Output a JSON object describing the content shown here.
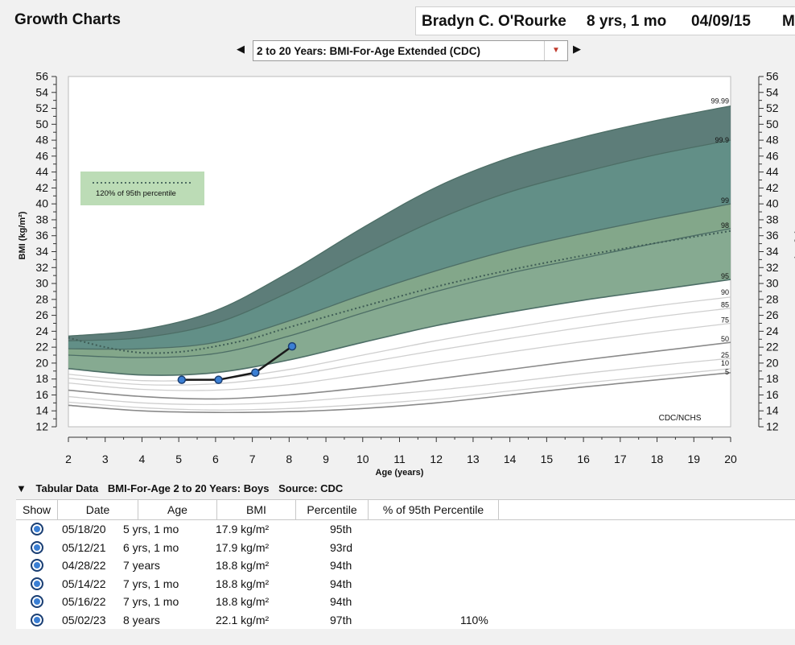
{
  "app": {
    "title": "Growth Charts"
  },
  "patient": {
    "name": "Bradyn C. O'Rourke",
    "age": "8 yrs, 1 mo",
    "date": "04/09/15",
    "extra": "M"
  },
  "selector": {
    "value": "2 to 20 Years: BMI-For-Age Extended (CDC)",
    "prev_icon": "triangle-left-icon",
    "next_icon": "triangle-right-icon"
  },
  "chart_data": {
    "type": "line",
    "xlabel": "Age (years)",
    "ylabel": "BMI (kg/m²)",
    "ylabel_right": "BMI (kg/m²)",
    "xlim": [
      2,
      20
    ],
    "ylim": [
      12,
      56
    ],
    "x_ticks": [
      "2",
      "3",
      "4",
      "5",
      "6",
      "7",
      "8",
      "9",
      "10",
      "11",
      "12",
      "13",
      "14",
      "15",
      "16",
      "17",
      "18",
      "19",
      "20"
    ],
    "y_ticks": [
      "12",
      "14",
      "16",
      "18",
      "20",
      "22",
      "24",
      "26",
      "28",
      "30",
      "32",
      "34",
      "36",
      "38",
      "40",
      "42",
      "44",
      "46",
      "48",
      "50",
      "52",
      "54",
      "56"
    ],
    "source_label": "CDC/NCHS",
    "legend": {
      "label": "120% of 95th percentile",
      "placement": "top-left"
    },
    "percentile_curves": [
      {
        "name": "5",
        "x": [
          2,
          4,
          6,
          8,
          10,
          12,
          14,
          16,
          18,
          20
        ],
        "y": [
          14.7,
          14.0,
          13.8,
          13.9,
          14.3,
          15.0,
          16.0,
          17.0,
          17.9,
          18.8
        ]
      },
      {
        "name": "10",
        "x": [
          2,
          4,
          6,
          8,
          10,
          12,
          14,
          16,
          18,
          20
        ],
        "y": [
          15.1,
          14.4,
          14.1,
          14.3,
          14.8,
          15.5,
          16.5,
          17.5,
          18.4,
          19.3
        ]
      },
      {
        "name": "25",
        "x": [
          2,
          4,
          6,
          8,
          10,
          12,
          14,
          16,
          18,
          20
        ],
        "y": [
          15.8,
          15.0,
          14.8,
          15.1,
          15.8,
          16.6,
          17.6,
          18.7,
          19.7,
          20.6
        ]
      },
      {
        "name": "50",
        "x": [
          2,
          4,
          6,
          8,
          10,
          12,
          14,
          16,
          18,
          20
        ],
        "y": [
          16.6,
          15.8,
          15.5,
          16.0,
          16.9,
          18.0,
          19.2,
          20.4,
          21.5,
          22.6
        ]
      },
      {
        "name": "75",
        "x": [
          2,
          4,
          6,
          8,
          10,
          12,
          14,
          16,
          18,
          20
        ],
        "y": [
          17.5,
          16.7,
          16.6,
          17.3,
          18.6,
          20.0,
          21.4,
          22.7,
          23.9,
          25.0
        ]
      },
      {
        "name": "85",
        "x": [
          2,
          4,
          6,
          8,
          10,
          12,
          14,
          16,
          18,
          20
        ],
        "y": [
          18.1,
          17.3,
          17.4,
          18.4,
          20.0,
          21.6,
          23.1,
          24.5,
          25.8,
          26.9
        ]
      },
      {
        "name": "90",
        "x": [
          2,
          4,
          6,
          8,
          10,
          12,
          14,
          16,
          18,
          20
        ],
        "y": [
          18.6,
          17.8,
          18.0,
          19.2,
          21.0,
          22.8,
          24.4,
          25.9,
          27.2,
          28.3
        ]
      },
      {
        "name": "95",
        "x": [
          2,
          4,
          6,
          8,
          10,
          12,
          14,
          16,
          18,
          20
        ],
        "y": [
          19.3,
          18.5,
          18.8,
          20.4,
          22.6,
          24.7,
          26.4,
          27.9,
          29.2,
          30.5
        ]
      },
      {
        "name": "98",
        "x": [
          2,
          4,
          6,
          8,
          10,
          12,
          14,
          16,
          18,
          20
        ],
        "y": [
          21.0,
          20.7,
          21.2,
          23.4,
          26.3,
          29.0,
          31.3,
          33.2,
          35.1,
          36.9
        ]
      },
      {
        "name": "99",
        "x": [
          2,
          4,
          6,
          8,
          10,
          12,
          14,
          16,
          18,
          20
        ],
        "y": [
          21.8,
          21.8,
          22.6,
          25.3,
          28.6,
          31.6,
          34.2,
          36.3,
          38.2,
          40.0
        ]
      },
      {
        "name": "99.9",
        "x": [
          2,
          4,
          6,
          8,
          10,
          12,
          14,
          16,
          18,
          20
        ],
        "y": [
          22.8,
          23.2,
          25.0,
          28.9,
          33.6,
          38.0,
          41.5,
          44.0,
          46.2,
          48.0
        ]
      },
      {
        "name": "99.99",
        "x": [
          2,
          4,
          6,
          8,
          10,
          12,
          14,
          16,
          18,
          20
        ],
        "y": [
          23.4,
          24.2,
          26.6,
          31.4,
          37.0,
          42.1,
          45.8,
          48.4,
          50.5,
          52.3
        ]
      }
    ],
    "pct120_of_95th": {
      "x": [
        2,
        3,
        4,
        5,
        6,
        7,
        8,
        10,
        12,
        14,
        16,
        18,
        20
      ],
      "y": [
        23.2,
        22.0,
        21.3,
        21.4,
        22.1,
        23.1,
        24.5,
        27.1,
        29.6,
        31.7,
        33.5,
        35.1,
        36.6
      ]
    },
    "patient_series": {
      "name": "Patient",
      "x": [
        5.08,
        6.08,
        7.08,
        8.08
      ],
      "y": [
        17.9,
        17.9,
        18.8,
        22.1
      ]
    }
  },
  "tabular": {
    "toggle_icon": "triangle-down-icon",
    "title": "Tabular Data",
    "subtitle": "BMI-For-Age 2 to 20 Years: Boys",
    "source": "Source: CDC",
    "columns": [
      "Show",
      "Date",
      "Age",
      "BMI",
      "Percentile",
      "% of 95th Percentile"
    ],
    "rows": [
      {
        "date": "05/18/20",
        "age": "5 yrs, 1 mo",
        "bmi": "17.9 kg/m²",
        "percentile": "95th",
        "pct95": ""
      },
      {
        "date": "05/12/21",
        "age": "6 yrs, 1 mo",
        "bmi": "17.9 kg/m²",
        "percentile": "93rd",
        "pct95": ""
      },
      {
        "date": "04/28/22",
        "age": "7 years",
        "bmi": "18.8 kg/m²",
        "percentile": "94th",
        "pct95": ""
      },
      {
        "date": "05/14/22",
        "age": "7 yrs, 1 mo",
        "bmi": "18.8 kg/m²",
        "percentile": "94th",
        "pct95": ""
      },
      {
        "date": "05/16/22",
        "age": "7 yrs, 1 mo",
        "bmi": "18.8 kg/m²",
        "percentile": "94th",
        "pct95": ""
      },
      {
        "date": "05/02/23",
        "age": "8 years",
        "bmi": "22.1 kg/m²",
        "percentile": "97th",
        "pct95": "110%"
      }
    ]
  }
}
